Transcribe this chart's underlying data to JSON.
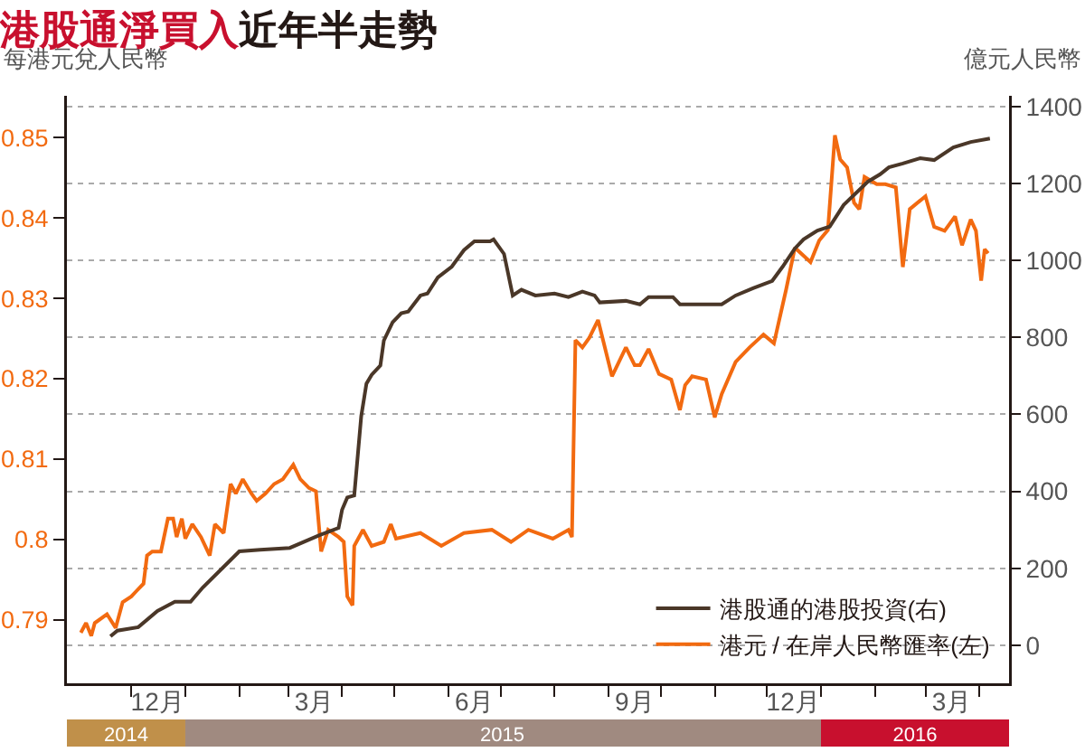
{
  "chart_data": {
    "type": "line",
    "title": "港股通淨買入",
    "subtitle": "近年半走勢",
    "ylabel": "每港元兌人民幣",
    "y2label": "億元人民幣",
    "xlim": [
      "2014-10-25",
      "2016-04-18"
    ],
    "xticks": [
      {
        "value": "2014-12-01",
        "label": null
      },
      {
        "value": "2015-01-01",
        "label": null
      },
      {
        "value": "2015-02-01",
        "label": null
      },
      {
        "value": "2015-03-01",
        "label": null
      },
      {
        "value": "2015-04-01",
        "label": null
      },
      {
        "value": "2015-05-01",
        "label": null
      },
      {
        "value": "2015-06-01",
        "label": null
      },
      {
        "value": "2015-07-01",
        "label": null
      },
      {
        "value": "2015-08-01",
        "label": null
      },
      {
        "value": "2015-09-01",
        "label": null
      },
      {
        "value": "2015-10-01",
        "label": null
      },
      {
        "value": "2015-11-01",
        "label": null
      },
      {
        "value": "2015-12-01",
        "label": null
      },
      {
        "value": "2016-01-01",
        "label": null
      },
      {
        "value": "2016-02-01",
        "label": null
      },
      {
        "value": "2016-03-01",
        "label": null
      },
      {
        "value": "2016-04-01",
        "label": null
      },
      {
        "value": "2014-12-16",
        "label": "12月"
      },
      {
        "value": "2015-03-16",
        "label": "3月"
      },
      {
        "value": "2015-06-16",
        "label": "6月"
      },
      {
        "value": "2015-09-16",
        "label": "9月"
      },
      {
        "value": "2015-12-16",
        "label": "12月"
      },
      {
        "value": "2016-03-16",
        "label": "3月"
      }
    ],
    "ylim": [
      0.7821,
      0.8552
    ],
    "yticks": [
      0.79,
      0.8,
      0.81,
      0.82,
      0.83,
      0.84,
      0.85
    ],
    "y2lim": [
      -99,
      1428
    ],
    "y2ticks": [
      0,
      200,
      400,
      600,
      800,
      1000,
      1200,
      1400
    ],
    "grid": "y",
    "legend": "bottom right",
    "x2lim": [
      "2014-10-25",
      "2016-04-18"
    ],
    "x2ticks": [
      {
        "value": "2014-11-28",
        "label": "2014"
      },
      {
        "value": "2015-01-01",
        "label": null
      },
      {
        "value": "2015-07-02",
        "label": "2015"
      },
      {
        "value": "2016-01-01",
        "label": null
      },
      {
        "value": "2016-02-24",
        "label": "2016"
      }
    ],
    "series": [
      {
        "name": "港股通的港股投資(右)",
        "color": "#4a3728",
        "axis": "y2",
        "x": [
          "2014-11-19",
          "2014-11-23",
          "2014-12-05",
          "2014-12-16",
          "2014-12-26",
          "2015-01-04",
          "2015-01-11",
          "2015-02-01",
          "2015-02-13",
          "2015-03-02",
          "2015-03-19",
          "2015-03-30",
          "2015-04-01",
          "2015-04-04",
          "2015-04-08",
          "2015-04-12",
          "2015-04-15",
          "2015-04-18",
          "2015-04-23",
          "2015-04-25",
          "2015-04-30",
          "2015-05-05",
          "2015-05-09",
          "2015-05-16",
          "2015-05-20",
          "2015-05-26",
          "2015-06-03",
          "2015-06-10",
          "2015-06-16",
          "2015-06-25",
          "2015-06-27",
          "2015-07-03",
          "2015-07-08",
          "2015-07-13",
          "2015-07-21",
          "2015-08-01",
          "2015-08-09",
          "2015-08-17",
          "2015-08-24",
          "2015-08-27",
          "2015-09-11",
          "2015-09-19",
          "2015-09-24",
          "2015-10-08",
          "2015-10-12",
          "2015-11-05",
          "2015-11-13",
          "2015-11-23",
          "2015-12-04",
          "2015-12-10",
          "2015-12-17",
          "2015-12-22",
          "2015-12-30",
          "2016-01-06",
          "2016-01-14",
          "2016-01-28",
          "2016-02-04",
          "2016-02-09",
          "2016-02-17",
          "2016-02-27",
          "2016-03-06",
          "2016-03-17",
          "2016-03-27",
          "2016-04-07"
        ],
        "values": [
          23,
          38,
          47,
          89,
          113,
          113,
          150,
          244,
          248,
          253,
          286,
          305,
          352,
          384,
          389,
          595,
          680,
          703,
          727,
          792,
          839,
          863,
          867,
          909,
          914,
          956,
          984,
          1027,
          1050,
          1050,
          1055,
          1017,
          909,
          924,
          909,
          914,
          905,
          919,
          909,
          891,
          895,
          886,
          905,
          905,
          886,
          886,
          909,
          928,
          947,
          984,
          1031,
          1055,
          1078,
          1088,
          1144,
          1205,
          1224,
          1242,
          1252,
          1266,
          1261,
          1294,
          1308,
          1317
        ]
      },
      {
        "name": "港元 / 在岸人民幣匯率(左)",
        "color": "#f26a10",
        "x": [
          "2014-11-02",
          "2014-11-05",
          "2014-11-08",
          "2014-11-10",
          "2014-11-17",
          "2014-11-22",
          "2014-11-26",
          "2014-12-01",
          "2014-12-04",
          "2014-12-08",
          "2014-12-10",
          "2014-12-13",
          "2014-12-18",
          "2014-12-22",
          "2014-12-25",
          "2014-12-27",
          "2014-12-30",
          "2015-01-01",
          "2015-01-05",
          "2015-01-10",
          "2015-01-15",
          "2015-01-18",
          "2015-01-23",
          "2015-01-27",
          "2015-01-30",
          "2015-02-03",
          "2015-02-08",
          "2015-02-11",
          "2015-02-16",
          "2015-02-21",
          "2015-02-26",
          "2015-03-04",
          "2015-03-08",
          "2015-03-13",
          "2015-03-17",
          "2015-03-20",
          "2015-03-24",
          "2015-03-30",
          "2015-04-02",
          "2015-04-04",
          "2015-04-07",
          "2015-04-08",
          "2015-04-13",
          "2015-04-18",
          "2015-04-25",
          "2015-04-29",
          "2015-05-02",
          "2015-05-16",
          "2015-05-28",
          "2015-06-10",
          "2015-06-26",
          "2015-07-07",
          "2015-07-17",
          "2015-07-31",
          "2015-08-09",
          "2015-08-11",
          "2015-08-13",
          "2015-08-17",
          "2015-08-21",
          "2015-08-26",
          "2015-09-03",
          "2015-09-11",
          "2015-09-16",
          "2015-09-19",
          "2015-09-24",
          "2015-09-30",
          "2015-10-07",
          "2015-10-12",
          "2015-10-15",
          "2015-10-19",
          "2015-10-27",
          "2015-11-01",
          "2015-11-05",
          "2015-11-13",
          "2015-11-21",
          "2015-11-29",
          "2015-12-05",
          "2015-12-12",
          "2015-12-17",
          "2015-12-26",
          "2015-12-31",
          "2016-01-05",
          "2016-01-09",
          "2016-01-12",
          "2016-01-16",
          "2016-01-20",
          "2016-01-23",
          "2016-01-26",
          "2016-02-02",
          "2016-02-07",
          "2016-02-13",
          "2016-02-17",
          "2016-02-21",
          "2016-03-01",
          "2016-03-06",
          "2016-03-12",
          "2016-03-18",
          "2016-03-22",
          "2016-03-27",
          "2016-03-30",
          "2016-04-02",
          "2016-04-04",
          "2016-04-06"
        ],
        "values": [
          0.7884,
          0.7896,
          0.788,
          0.7896,
          0.7907,
          0.789,
          0.7922,
          0.7929,
          0.7936,
          0.7945,
          0.798,
          0.7985,
          0.7985,
          0.8026,
          0.8026,
          0.8003,
          0.8026,
          0.8001,
          0.8019,
          0.8003,
          0.798,
          0.8019,
          0.8008,
          0.8069,
          0.8057,
          0.8075,
          0.8057,
          0.8048,
          0.8057,
          0.8069,
          0.8075,
          0.8093,
          0.8075,
          0.8064,
          0.806,
          0.7985,
          0.8012,
          0.8003,
          0.7997,
          0.7929,
          0.7918,
          0.7992,
          0.8012,
          0.7992,
          0.7997,
          0.8019,
          0.8001,
          0.8008,
          0.7992,
          0.8008,
          0.8012,
          0.7997,
          0.8012,
          0.8001,
          0.8012,
          0.8003,
          0.8248,
          0.8239,
          0.8251,
          0.8273,
          0.8203,
          0.8239,
          0.8217,
          0.8217,
          0.8237,
          0.8206,
          0.8199,
          0.8161,
          0.8192,
          0.8203,
          0.8199,
          0.8152,
          0.8181,
          0.8221,
          0.8239,
          0.8255,
          0.8244,
          0.8311,
          0.8363,
          0.8345,
          0.8372,
          0.8385,
          0.8503,
          0.8473,
          0.8463,
          0.8419,
          0.8411,
          0.8451,
          0.8442,
          0.8442,
          0.8438,
          0.8339,
          0.8411,
          0.8427,
          0.8389,
          0.8384,
          0.8402,
          0.8366,
          0.8398,
          0.8384,
          0.8322,
          0.8361,
          0.8356
        ]
      }
    ]
  }
}
